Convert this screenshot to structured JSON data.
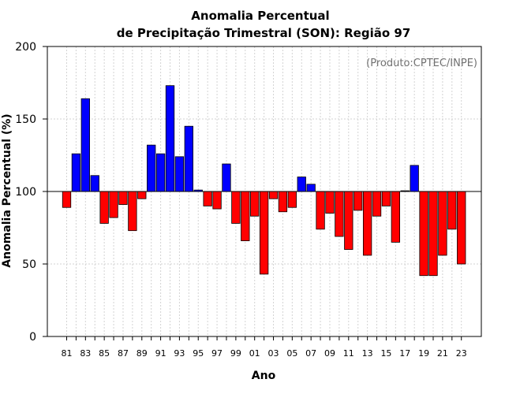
{
  "chart_data": {
    "type": "bar",
    "title": "Anomalia Percentual",
    "subtitle": "de Precipitação Trimestral (SON): Região 97",
    "xlabel": "Ano",
    "ylabel": "Anomalia Percentual (%)",
    "annotation": "(Produto:CPTEC/INPE)",
    "ylim": [
      0,
      200
    ],
    "yticks": [
      0,
      50,
      100,
      150,
      200
    ],
    "baseline": 100,
    "grid": true,
    "colors": {
      "above": "#0000ff",
      "below": "#ff0000",
      "baseline": "#000000",
      "grid": "#d3d3d3"
    },
    "categories": [
      "81",
      "82",
      "83",
      "84",
      "85",
      "86",
      "87",
      "88",
      "89",
      "90",
      "91",
      "92",
      "93",
      "94",
      "95",
      "96",
      "97",
      "98",
      "99",
      "00",
      "01",
      "02",
      "03",
      "04",
      "05",
      "06",
      "07",
      "08",
      "09",
      "10",
      "11",
      "12",
      "13",
      "14",
      "15",
      "16",
      "17",
      "18",
      "19",
      "20",
      "21",
      "22",
      "23"
    ],
    "tick_labels": [
      "81",
      "83",
      "85",
      "87",
      "89",
      "91",
      "93",
      "95",
      "97",
      "99",
      "01",
      "03",
      "05",
      "07",
      "09",
      "11",
      "13",
      "15",
      "17",
      "19",
      "21",
      "23"
    ],
    "values": [
      89,
      126,
      164,
      111,
      78,
      82,
      91,
      73,
      95,
      132,
      126,
      173,
      124,
      145,
      101,
      90,
      88,
      119,
      78,
      66,
      83,
      43,
      95,
      86,
      89,
      110,
      105,
      74,
      85,
      69,
      60,
      87,
      56,
      83,
      90,
      65,
      100.5,
      118,
      42,
      42,
      56,
      74,
      50
    ]
  }
}
